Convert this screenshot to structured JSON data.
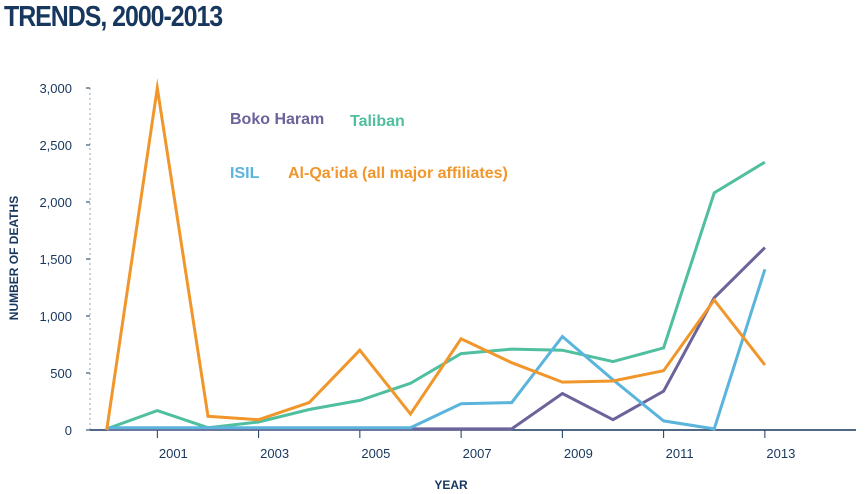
{
  "title": "TRENDS, 2000-2013",
  "chart_data": {
    "type": "line",
    "title": "TRENDS, 2000-2013",
    "xlabel": "YEAR",
    "ylabel": "NUMBER OF DEATHS",
    "x": [
      2000,
      2001,
      2002,
      2003,
      2004,
      2005,
      2006,
      2007,
      2008,
      2009,
      2010,
      2011,
      2012,
      2013
    ],
    "xlim": [
      1999.67,
      2014.8
    ],
    "x_tick_values": [
      2001,
      2003,
      2005,
      2007,
      2009,
      2011,
      2013
    ],
    "x_tick_labels": [
      "2001",
      "2003",
      "2005",
      "2007",
      "2009",
      "2011",
      "2013"
    ],
    "ylim": [
      0,
      3000
    ],
    "y_tick_values": [
      0,
      500,
      1000,
      1500,
      2000,
      2500,
      3000
    ],
    "y_tick_labels": [
      "0",
      "500",
      "1,000",
      "1,500",
      "2,000",
      "2,500",
      "3,000"
    ],
    "grid": "vertical dotted line at the y-axis only",
    "legend_placement": "inline, upper-left inside the plot",
    "series": [
      {
        "name": "Boko Haram",
        "color": "#6c639b",
        "values": [
          10,
          10,
          10,
          10,
          10,
          10,
          10,
          10,
          10,
          320,
          90,
          340,
          1160,
          1600
        ]
      },
      {
        "name": "Taliban",
        "color": "#4fbf9f",
        "values": [
          10,
          170,
          20,
          70,
          180,
          260,
          410,
          670,
          710,
          700,
          600,
          720,
          2080,
          2350
        ]
      },
      {
        "name": "ISIL",
        "color": "#5ab4dc",
        "values": [
          20,
          20,
          20,
          20,
          20,
          20,
          20,
          230,
          240,
          820,
          440,
          80,
          10,
          1410
        ]
      },
      {
        "name": "Al-Qa'ida (all major affiliates)",
        "color": "#f0962b",
        "values": [
          0,
          3000,
          120,
          90,
          240,
          700,
          140,
          800,
          590,
          420,
          430,
          520,
          1140,
          570
        ]
      }
    ]
  }
}
